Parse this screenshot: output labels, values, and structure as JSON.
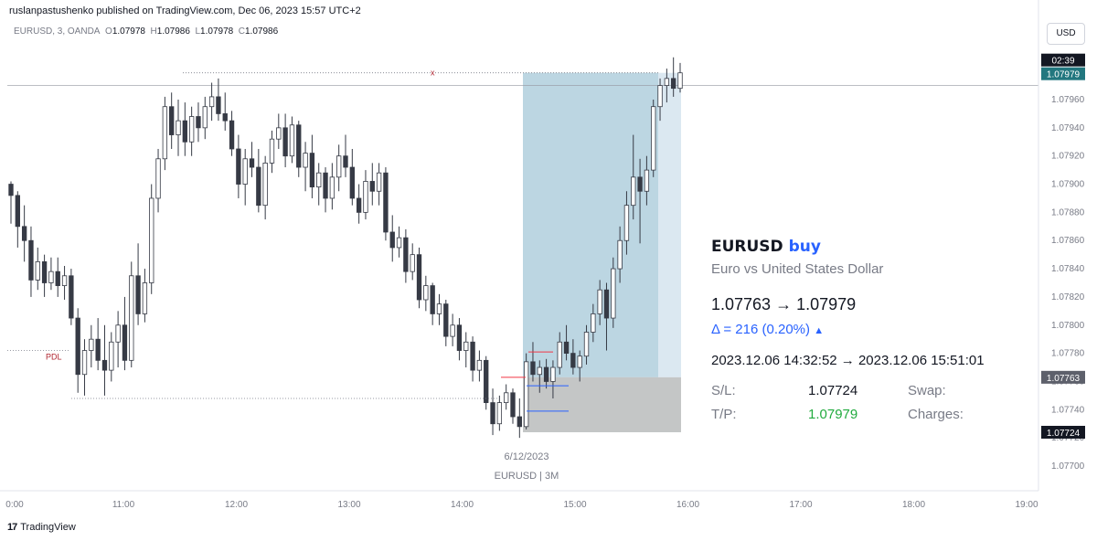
{
  "header": {
    "publisher_line": "ruslanpastushenko published on TradingView.com, Dec 06, 2023 15:57 UTC+2"
  },
  "legend": {
    "symbol": "EURUSD, 3, OANDA",
    "o_label": "O",
    "o_value": "1.07978",
    "h_label": "H",
    "h_value": "1.07986",
    "l_label": "L",
    "l_value": "1.07978",
    "c_label": "C",
    "c_value": "1.07986"
  },
  "currency_button": "USD",
  "info_panel": {
    "symbol": "EURUSD",
    "side": "buy",
    "description": "Euro vs United States Dollar",
    "price_change": "1.07763 → 1.07979",
    "delta": "Δ = 216 (0.20%)",
    "time_range": "2023.12.06 14:32:52 → 2023.12.06 15:51:01",
    "sl_label": "S/L:",
    "sl_value": "1.07724",
    "tp_label": "T/P:",
    "tp_value": "1.07979",
    "swap_label": "Swap:",
    "charges_label": "Charges:"
  },
  "footer": {
    "brand": "TradingView"
  },
  "chart_data": {
    "type": "candlestick",
    "symbol": "EURUSD",
    "timeframe": "3",
    "date_label": "6/12/2023",
    "symbol_interval_label": "EURUSD | 3M",
    "x_ticks": [
      "0:00",
      "11:00",
      "12:00",
      "13:00",
      "14:00",
      "15:00",
      "16:00",
      "17:00",
      "18:00",
      "19:00"
    ],
    "y_ticks": [
      "1.07700",
      "1.07720",
      "1.07740",
      "1.07760",
      "1.07780",
      "1.07800",
      "1.07820",
      "1.07840",
      "1.07860",
      "1.07880",
      "1.07900",
      "1.07920",
      "1.07940",
      "1.07960"
    ],
    "ylim": [
      1.0769,
      1.0799
    ],
    "price_labels": {
      "countdown": "02:39",
      "last_price": "1.07979",
      "entry_price": "1.07763",
      "stop_loss_price": "1.07724"
    },
    "annotations": {
      "pdl_label": "PDL",
      "pdl_price": 1.07782,
      "x_marker": "x",
      "x_marker_price": 1.07979
    },
    "colors": {
      "up_body": "#ffffff",
      "down_body": "#363a45",
      "wick": "#363a45",
      "position_profit": "#bcd6e2",
      "position_loss": "#c4c6c6",
      "accent_blue": "#2962ff",
      "last_price_bg": "#22777f"
    },
    "candles": [
      {
        "o": 1.079,
        "h": 1.07902,
        "l": 1.07872,
        "c": 1.07892
      },
      {
        "o": 1.07892,
        "h": 1.07895,
        "l": 1.07855,
        "c": 1.0787
      },
      {
        "o": 1.0787,
        "h": 1.07885,
        "l": 1.07845,
        "c": 1.0786
      },
      {
        "o": 1.0786,
        "h": 1.0787,
        "l": 1.0782,
        "c": 1.07832
      },
      {
        "o": 1.07832,
        "h": 1.07855,
        "l": 1.07825,
        "c": 1.07845
      },
      {
        "o": 1.07845,
        "h": 1.0785,
        "l": 1.0782,
        "c": 1.0783
      },
      {
        "o": 1.0783,
        "h": 1.07848,
        "l": 1.07825,
        "c": 1.07838
      },
      {
        "o": 1.07838,
        "h": 1.07848,
        "l": 1.0782,
        "c": 1.07828
      },
      {
        "o": 1.07828,
        "h": 1.07842,
        "l": 1.07818,
        "c": 1.07835
      },
      {
        "o": 1.07835,
        "h": 1.0784,
        "l": 1.078,
        "c": 1.07805
      },
      {
        "o": 1.07805,
        "h": 1.07812,
        "l": 1.07752,
        "c": 1.07765
      },
      {
        "o": 1.07765,
        "h": 1.0779,
        "l": 1.0775,
        "c": 1.07782
      },
      {
        "o": 1.07782,
        "h": 1.078,
        "l": 1.0777,
        "c": 1.0779
      },
      {
        "o": 1.0779,
        "h": 1.07805,
        "l": 1.07768,
        "c": 1.07775
      },
      {
        "o": 1.07775,
        "h": 1.078,
        "l": 1.0775,
        "c": 1.07768
      },
      {
        "o": 1.07768,
        "h": 1.07795,
        "l": 1.0776,
        "c": 1.07788
      },
      {
        "o": 1.07788,
        "h": 1.0781,
        "l": 1.0777,
        "c": 1.078
      },
      {
        "o": 1.078,
        "h": 1.0782,
        "l": 1.07768,
        "c": 1.07775
      },
      {
        "o": 1.07775,
        "h": 1.07845,
        "l": 1.0777,
        "c": 1.07835
      },
      {
        "o": 1.07835,
        "h": 1.07858,
        "l": 1.078,
        "c": 1.07808
      },
      {
        "o": 1.07808,
        "h": 1.0784,
        "l": 1.07802,
        "c": 1.0783
      },
      {
        "o": 1.0783,
        "h": 1.079,
        "l": 1.07822,
        "c": 1.0789
      },
      {
        "o": 1.0789,
        "h": 1.07925,
        "l": 1.0788,
        "c": 1.07918
      },
      {
        "o": 1.07918,
        "h": 1.07962,
        "l": 1.0791,
        "c": 1.07955
      },
      {
        "o": 1.07955,
        "h": 1.07965,
        "l": 1.07925,
        "c": 1.07935
      },
      {
        "o": 1.07935,
        "h": 1.0796,
        "l": 1.0792,
        "c": 1.07945
      },
      {
        "o": 1.07945,
        "h": 1.07958,
        "l": 1.0792,
        "c": 1.0793
      },
      {
        "o": 1.0793,
        "h": 1.07955,
        "l": 1.0792,
        "c": 1.07948
      },
      {
        "o": 1.07948,
        "h": 1.07958,
        "l": 1.0793,
        "c": 1.0794
      },
      {
        "o": 1.0794,
        "h": 1.07962,
        "l": 1.07932,
        "c": 1.07955
      },
      {
        "o": 1.07955,
        "h": 1.07972,
        "l": 1.07945,
        "c": 1.07962
      },
      {
        "o": 1.07962,
        "h": 1.07975,
        "l": 1.07945,
        "c": 1.0795
      },
      {
        "o": 1.0795,
        "h": 1.07965,
        "l": 1.07938,
        "c": 1.07945
      },
      {
        "o": 1.07945,
        "h": 1.07952,
        "l": 1.0792,
        "c": 1.07925
      },
      {
        "o": 1.07925,
        "h": 1.07935,
        "l": 1.0789,
        "c": 1.079
      },
      {
        "o": 1.079,
        "h": 1.07925,
        "l": 1.07885,
        "c": 1.07918
      },
      {
        "o": 1.07918,
        "h": 1.0793,
        "l": 1.07905,
        "c": 1.07912
      },
      {
        "o": 1.07912,
        "h": 1.07925,
        "l": 1.0788,
        "c": 1.07885
      },
      {
        "o": 1.07885,
        "h": 1.0792,
        "l": 1.07875,
        "c": 1.07915
      },
      {
        "o": 1.07915,
        "h": 1.07938,
        "l": 1.07908,
        "c": 1.07932
      },
      {
        "o": 1.07932,
        "h": 1.0795,
        "l": 1.07925,
        "c": 1.0794
      },
      {
        "o": 1.0794,
        "h": 1.0795,
        "l": 1.07912,
        "c": 1.0792
      },
      {
        "o": 1.0792,
        "h": 1.07948,
        "l": 1.07915,
        "c": 1.07942
      },
      {
        "o": 1.07942,
        "h": 1.07945,
        "l": 1.07905,
        "c": 1.07912
      },
      {
        "o": 1.07912,
        "h": 1.0793,
        "l": 1.07895,
        "c": 1.07922
      },
      {
        "o": 1.07922,
        "h": 1.07935,
        "l": 1.0789,
        "c": 1.07898
      },
      {
        "o": 1.07898,
        "h": 1.07915,
        "l": 1.07885,
        "c": 1.07908
      },
      {
        "o": 1.07908,
        "h": 1.07912,
        "l": 1.0788,
        "c": 1.0789
      },
      {
        "o": 1.0789,
        "h": 1.07915,
        "l": 1.07882,
        "c": 1.07905
      },
      {
        "o": 1.07905,
        "h": 1.07928,
        "l": 1.07895,
        "c": 1.0792
      },
      {
        "o": 1.0792,
        "h": 1.07935,
        "l": 1.07905,
        "c": 1.07912
      },
      {
        "o": 1.07912,
        "h": 1.07925,
        "l": 1.07885,
        "c": 1.0789
      },
      {
        "o": 1.0789,
        "h": 1.079,
        "l": 1.07872,
        "c": 1.0788
      },
      {
        "o": 1.0788,
        "h": 1.0791,
        "l": 1.07875,
        "c": 1.07902
      },
      {
        "o": 1.07902,
        "h": 1.07915,
        "l": 1.07885,
        "c": 1.07895
      },
      {
        "o": 1.07895,
        "h": 1.07915,
        "l": 1.07885,
        "c": 1.07908
      },
      {
        "o": 1.07908,
        "h": 1.07912,
        "l": 1.0786,
        "c": 1.07866
      },
      {
        "o": 1.07866,
        "h": 1.07878,
        "l": 1.07845,
        "c": 1.07855
      },
      {
        "o": 1.07855,
        "h": 1.0787,
        "l": 1.07848,
        "c": 1.07862
      },
      {
        "o": 1.07862,
        "h": 1.07868,
        "l": 1.0783,
        "c": 1.07838
      },
      {
        "o": 1.07838,
        "h": 1.07858,
        "l": 1.07832,
        "c": 1.0785
      },
      {
        "o": 1.0785,
        "h": 1.07855,
        "l": 1.07812,
        "c": 1.07818
      },
      {
        "o": 1.07818,
        "h": 1.07835,
        "l": 1.0781,
        "c": 1.07828
      },
      {
        "o": 1.07828,
        "h": 1.0783,
        "l": 1.078,
        "c": 1.07808
      },
      {
        "o": 1.07808,
        "h": 1.07822,
        "l": 1.078,
        "c": 1.07815
      },
      {
        "o": 1.07815,
        "h": 1.07818,
        "l": 1.07785,
        "c": 1.07792
      },
      {
        "o": 1.07792,
        "h": 1.07808,
        "l": 1.07785,
        "c": 1.078
      },
      {
        "o": 1.078,
        "h": 1.07805,
        "l": 1.07775,
        "c": 1.07782
      },
      {
        "o": 1.07782,
        "h": 1.07795,
        "l": 1.0777,
        "c": 1.07788
      },
      {
        "o": 1.07788,
        "h": 1.07792,
        "l": 1.0776,
        "c": 1.07768
      },
      {
        "o": 1.07768,
        "h": 1.07782,
        "l": 1.0776,
        "c": 1.07775
      },
      {
        "o": 1.07775,
        "h": 1.07778,
        "l": 1.0774,
        "c": 1.07745
      },
      {
        "o": 1.07745,
        "h": 1.07755,
        "l": 1.07722,
        "c": 1.0773
      },
      {
        "o": 1.0773,
        "h": 1.0775,
        "l": 1.07725,
        "c": 1.07745
      },
      {
        "o": 1.07745,
        "h": 1.07758,
        "l": 1.0774,
        "c": 1.07752
      },
      {
        "o": 1.07752,
        "h": 1.07755,
        "l": 1.0773,
        "c": 1.07735
      },
      {
        "o": 1.07735,
        "h": 1.07748,
        "l": 1.0772,
        "c": 1.07728
      },
      {
        "o": 1.07728,
        "h": 1.0778,
        "l": 1.07726,
        "c": 1.07774
      },
      {
        "o": 1.07774,
        "h": 1.07788,
        "l": 1.0776,
        "c": 1.07765
      },
      {
        "o": 1.07765,
        "h": 1.07775,
        "l": 1.07752,
        "c": 1.0777
      },
      {
        "o": 1.0777,
        "h": 1.07776,
        "l": 1.07755,
        "c": 1.0776
      },
      {
        "o": 1.0776,
        "h": 1.07775,
        "l": 1.07748,
        "c": 1.0777
      },
      {
        "o": 1.0777,
        "h": 1.07795,
        "l": 1.07765,
        "c": 1.07788
      },
      {
        "o": 1.07788,
        "h": 1.078,
        "l": 1.07775,
        "c": 1.0778
      },
      {
        "o": 1.0778,
        "h": 1.0779,
        "l": 1.07765,
        "c": 1.0777
      },
      {
        "o": 1.0777,
        "h": 1.07782,
        "l": 1.0776,
        "c": 1.07778
      },
      {
        "o": 1.07778,
        "h": 1.078,
        "l": 1.07772,
        "c": 1.07795
      },
      {
        "o": 1.07795,
        "h": 1.07815,
        "l": 1.07788,
        "c": 1.07808
      },
      {
        "o": 1.07808,
        "h": 1.07832,
        "l": 1.078,
        "c": 1.07825
      },
      {
        "o": 1.07825,
        "h": 1.0783,
        "l": 1.07782,
        "c": 1.07805
      },
      {
        "o": 1.07805,
        "h": 1.07848,
        "l": 1.07798,
        "c": 1.0784
      },
      {
        "o": 1.0784,
        "h": 1.0787,
        "l": 1.0783,
        "c": 1.0786
      },
      {
        "o": 1.0786,
        "h": 1.07895,
        "l": 1.0785,
        "c": 1.07885
      },
      {
        "o": 1.07885,
        "h": 1.07935,
        "l": 1.07875,
        "c": 1.07905
      },
      {
        "o": 1.07905,
        "h": 1.07918,
        "l": 1.07858,
        "c": 1.07895
      },
      {
        "o": 1.07895,
        "h": 1.0792,
        "l": 1.07885,
        "c": 1.0791
      },
      {
        "o": 1.0791,
        "h": 1.0796,
        "l": 1.07905,
        "c": 1.07955
      },
      {
        "o": 1.07955,
        "h": 1.07975,
        "l": 1.07945,
        "c": 1.0797
      },
      {
        "o": 1.0797,
        "h": 1.07982,
        "l": 1.07958,
        "c": 1.07975
      },
      {
        "o": 1.07975,
        "h": 1.0799,
        "l": 1.07962,
        "c": 1.07968
      },
      {
        "o": 1.07968,
        "h": 1.07986,
        "l": 1.07965,
        "c": 1.07979
      }
    ],
    "position": {
      "entry": 1.07763,
      "take_profit": 1.07979,
      "stop_loss": 1.07724,
      "start_time": "2023.12.06 14:32:52",
      "end_time": "2023.12.06 15:51:01"
    }
  }
}
